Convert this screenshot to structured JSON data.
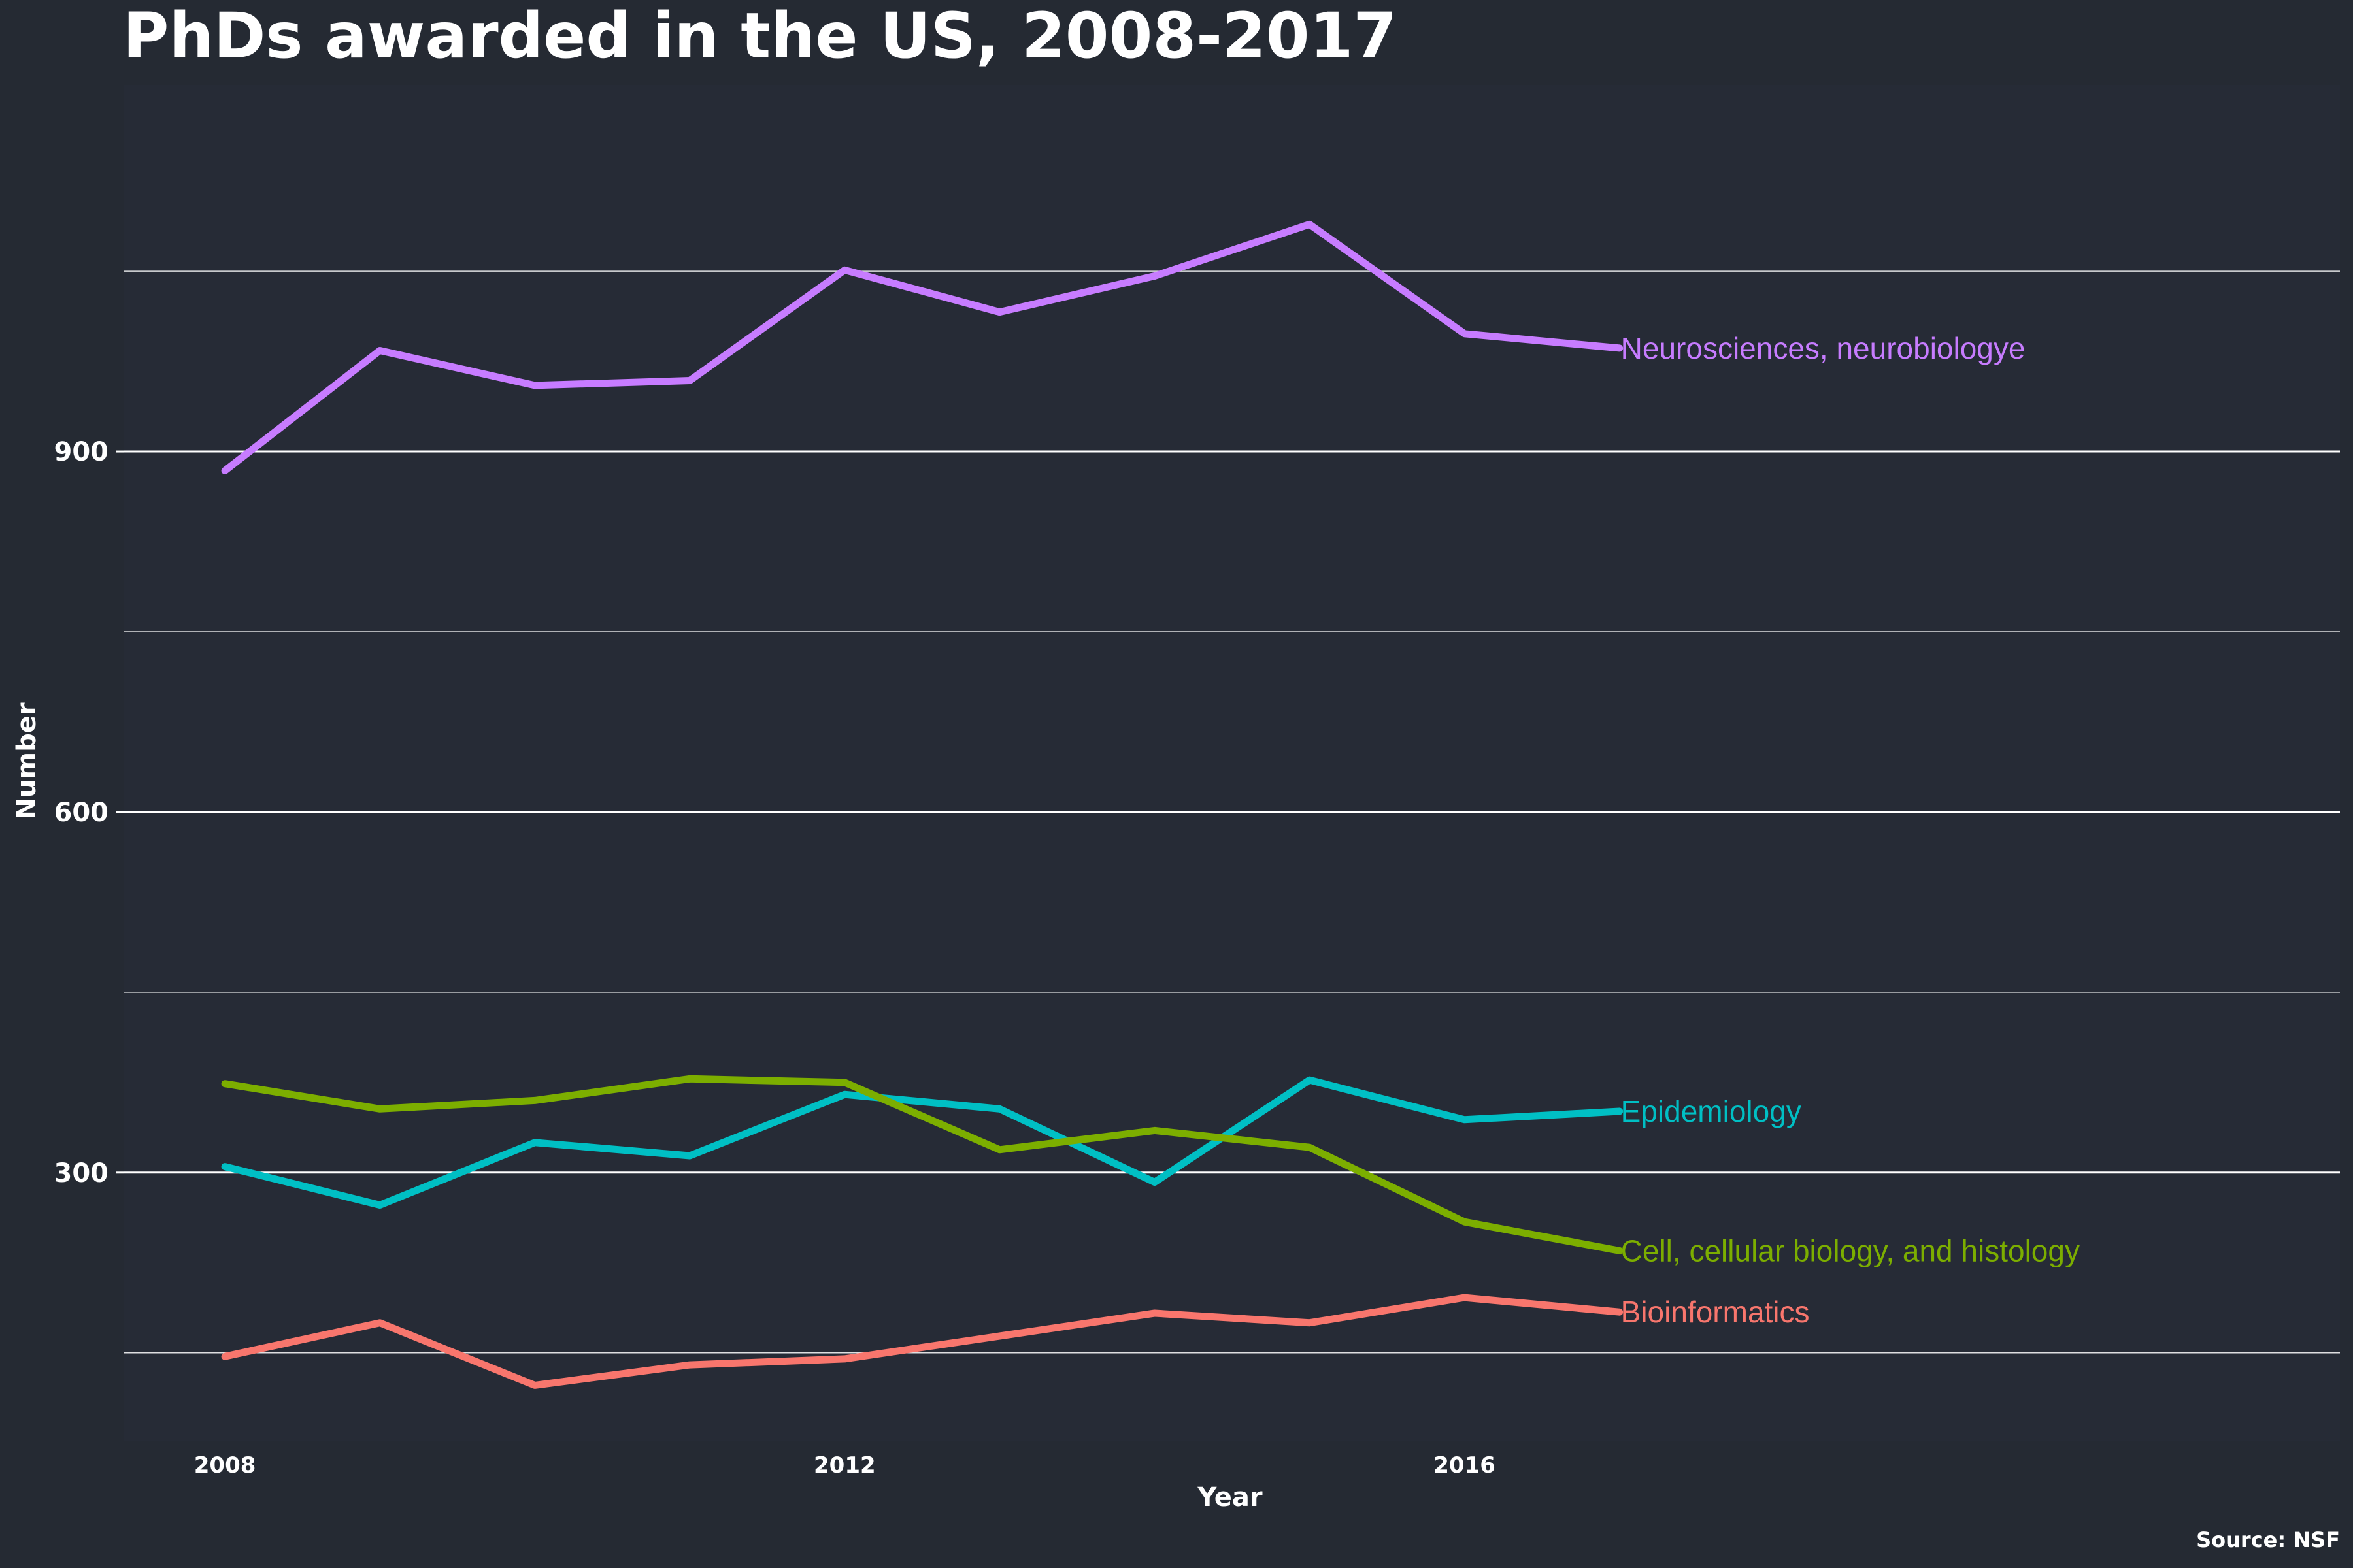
{
  "chart_data": {
    "type": "line",
    "title": "PhDs awarded in the US, 2008-2017",
    "xlabel": "Year",
    "ylabel": "Number",
    "caption": "Source: NSF",
    "x": [
      2008,
      2009,
      2010,
      2011,
      2012,
      2013,
      2014,
      2015,
      2016,
      2017
    ],
    "xlim": [
      2007.35,
      2021.65
    ],
    "ylim": [
      77,
      1205
    ],
    "x_ticks": [
      2008,
      2012,
      2016
    ],
    "x_tick_labels": [
      "2008",
      "2012",
      "2016"
    ],
    "y_ticks": [
      300,
      600,
      900
    ],
    "y_tick_labels": [
      "300",
      "600",
      "900"
    ],
    "y_minor_gridlines": [
      150,
      450,
      750,
      1050
    ],
    "grid": true,
    "legend": "direct labels at line ends",
    "series": [
      {
        "name": "Neurosciences, neurobiologye",
        "color": "#c77cff",
        "values": [
          884,
          984,
          955,
          959,
          1051,
          1016,
          1046,
          1089,
          998,
          986
        ]
      },
      {
        "name": "Epidemiology",
        "color": "#00bfc4",
        "values": [
          305,
          273,
          325,
          314,
          365,
          353,
          292,
          377,
          344,
          351
        ]
      },
      {
        "name": "Cell, cellular biology, and histology",
        "color": "#7cae00",
        "values": [
          374,
          353,
          360,
          378,
          375,
          319,
          335,
          321,
          259,
          235
        ]
      },
      {
        "name": "Bioinformatics",
        "color": "#f8766d",
        "values": [
          147,
          175,
          123,
          140,
          145,
          164,
          183,
          175,
          196,
          184
        ]
      }
    ]
  }
}
